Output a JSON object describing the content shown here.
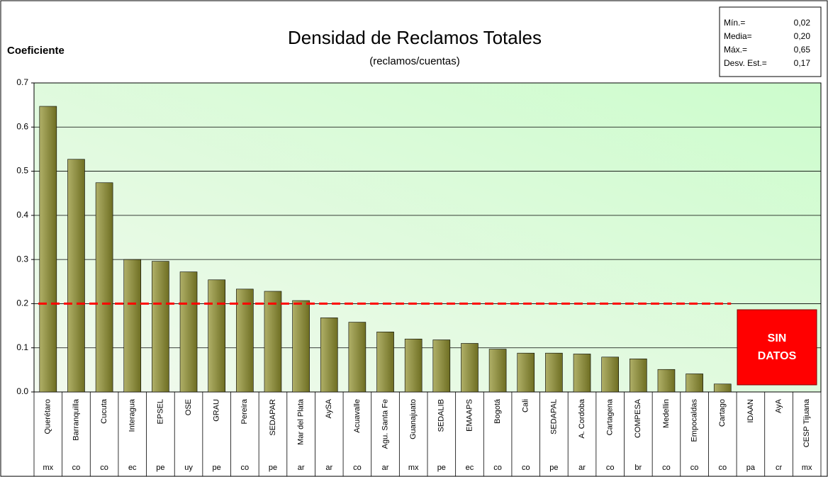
{
  "chart_data": {
    "type": "bar",
    "title": "Densidad de Reclamos Totales",
    "subtitle": "(reclamos/cuentas)",
    "y_label": "Coeficiente",
    "categories": [
      "Querétaro",
      "Barranquilla",
      "Cucuta",
      "Interagua",
      "EPSEL",
      "OSE",
      "GRAU",
      "Pereira",
      "SEDAPAR",
      "Mar del Plata",
      "AySA",
      "Acuavalle",
      "Agu. Santa Fe",
      "Guanajuato",
      "SEDALIB",
      "EMAAPS",
      "Bogotá",
      "Cali",
      "SEDAPAL",
      "A. Cordoba",
      "Cartagena",
      "COMPESA",
      "Medellin",
      "Empocaldas",
      "Cartago",
      "IDAAN",
      "AyA",
      "CESP Tijuana"
    ],
    "countries": [
      "mx",
      "co",
      "co",
      "ec",
      "pe",
      "uy",
      "pe",
      "co",
      "pe",
      "ar",
      "ar",
      "co",
      "ar",
      "mx",
      "pe",
      "ec",
      "co",
      "co",
      "pe",
      "ar",
      "co",
      "br",
      "co",
      "co",
      "co",
      "pa",
      "cr",
      "mx"
    ],
    "values": [
      0.647,
      0.527,
      0.474,
      0.3,
      0.296,
      0.272,
      0.254,
      0.233,
      0.228,
      0.207,
      0.168,
      0.158,
      0.136,
      0.12,
      0.118,
      0.11,
      0.097,
      0.088,
      0.088,
      0.086,
      0.079,
      0.075,
      0.051,
      0.041,
      0.018,
      null,
      null,
      null
    ],
    "color": "#8c8c3a",
    "mean_line": {
      "value": 0.2,
      "color": "#ff0000"
    },
    "ylim": [
      0,
      0.7
    ],
    "yticks": [
      {
        "value": 0,
        "label": "0.0"
      },
      0.1,
      0.2,
      0.3,
      0.4,
      0.5,
      0.6,
      0.7
    ],
    "grid": true,
    "stats": [
      {
        "label": "Mín.=",
        "value": "0,02"
      },
      {
        "label": "Media=",
        "value": "0,20"
      },
      {
        "label": "Máx.=",
        "value": "0,65"
      },
      {
        "label": "Desv. Est.=",
        "value": "0,17"
      }
    ],
    "annotation_lines": [
      "SIN",
      "DATOS"
    ]
  }
}
